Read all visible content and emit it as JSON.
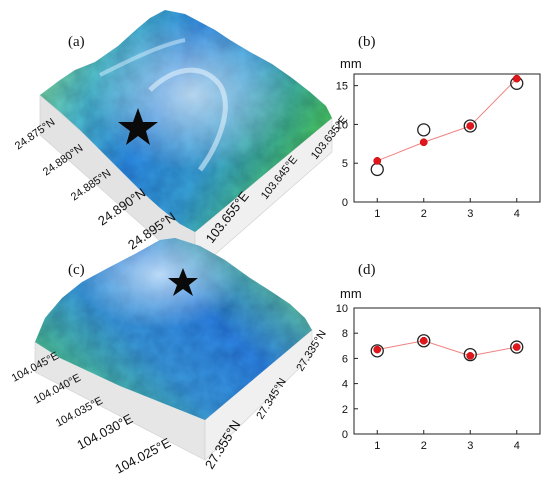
{
  "panels": {
    "a": {
      "label": "(a)"
    },
    "b": {
      "label": "(b)",
      "unit": "mm"
    },
    "c": {
      "label": "(c)"
    },
    "d": {
      "label": "(d)",
      "unit": "mm"
    }
  },
  "terrain_a": {
    "lat_labels": [
      "24.875°N",
      "24.880°N",
      "24.885°N",
      "24.890°N",
      "24.895°N"
    ],
    "lon_labels": [
      "103.655°E",
      "103.645°E",
      "103.635°E"
    ],
    "marker": "star"
  },
  "terrain_c": {
    "lon_labels": [
      "104.045°E",
      "104.040°E",
      "104.035°E",
      "104.030°E",
      "104.025°E"
    ],
    "lat_labels": [
      "27.355°N",
      "27.345°N",
      "27.335°N"
    ],
    "marker": "star"
  },
  "chart_data": [
    {
      "type": "scatter",
      "panel": "b",
      "ylabel": "mm",
      "x": [
        1,
        2,
        3,
        4
      ],
      "xticks": [
        "1",
        "2",
        "3",
        "4"
      ],
      "yticks": [
        "0",
        "5",
        "10",
        "15"
      ],
      "xlim": [
        0.5,
        4.5
      ],
      "ylim": [
        0,
        16.5
      ],
      "series": [
        {
          "marker": "open-circle",
          "color": "#222222",
          "values": [
            4.2,
            9.3,
            9.8,
            15.3
          ]
        },
        {
          "marker": "filled-dot-line",
          "color": "#e0161c",
          "values": [
            5.3,
            7.7,
            9.8,
            15.9
          ]
        }
      ]
    },
    {
      "type": "scatter",
      "panel": "d",
      "ylabel": "mm",
      "x": [
        1,
        2,
        3,
        4
      ],
      "xticks": [
        "1",
        "2",
        "3",
        "4"
      ],
      "yticks": [
        "0",
        "2",
        "4",
        "6",
        "8",
        "10"
      ],
      "xlim": [
        0.5,
        4.5
      ],
      "ylim": [
        0,
        10
      ],
      "series": [
        {
          "marker": "open-circle",
          "color": "#222222",
          "values": [
            6.6,
            7.4,
            6.3,
            6.9
          ]
        },
        {
          "marker": "filled-dot-line",
          "color": "#e0161c",
          "values": [
            6.7,
            7.4,
            6.2,
            6.9
          ]
        }
      ]
    }
  ]
}
